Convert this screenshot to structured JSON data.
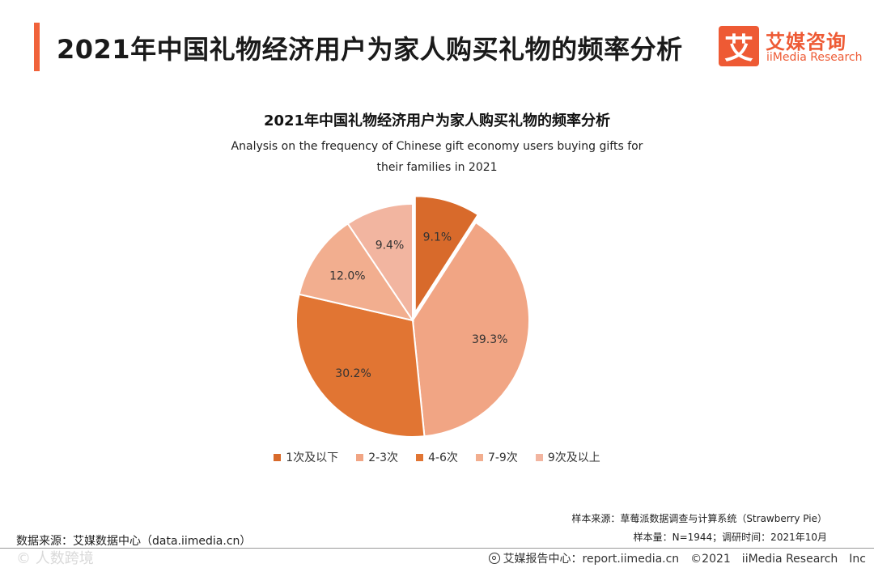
{
  "header": {
    "title": "2021年中国礼物经济用户为家人购买礼物的频率分析"
  },
  "logo": {
    "mark": "艾",
    "name_cn": "艾媒咨询",
    "name_en": "iiMedia Research"
  },
  "chart_data": {
    "type": "pie",
    "title": "2021年中国礼物经济用户为家人购买礼物的频率分析",
    "subtitle": "Analysis on the frequency of Chinese gift economy users buying gifts for their families in 2021",
    "categories": [
      "1次及以下",
      "2-3次",
      "4-6次",
      "7-9次",
      "9次及以上"
    ],
    "values": [
      9.1,
      39.3,
      30.2,
      12.0,
      9.4
    ],
    "labels": [
      "9.1%",
      "39.3%",
      "30.2%",
      "12.0%",
      "9.4%"
    ],
    "colors": [
      "#d86a2b",
      "#f1a584",
      "#e17533",
      "#f2ae8f",
      "#f2b5a0"
    ],
    "exploded": [
      true,
      false,
      false,
      false,
      false
    ],
    "legend_position": "bottom"
  },
  "notes": {
    "data_source": "数据来源：艾媒数据中心（data.iimedia.cn）",
    "sample_source": "样本来源：草莓派数据调查与计算系统（Strawberry Pie）",
    "sample_size": "样本量：N=1944；调研时间：2021年10月"
  },
  "footer": {
    "text": "艾媒报告中心：report.iimedia.cn　©2021　iiMedia Research　Inc",
    "watermark": "© 人数跨境"
  }
}
